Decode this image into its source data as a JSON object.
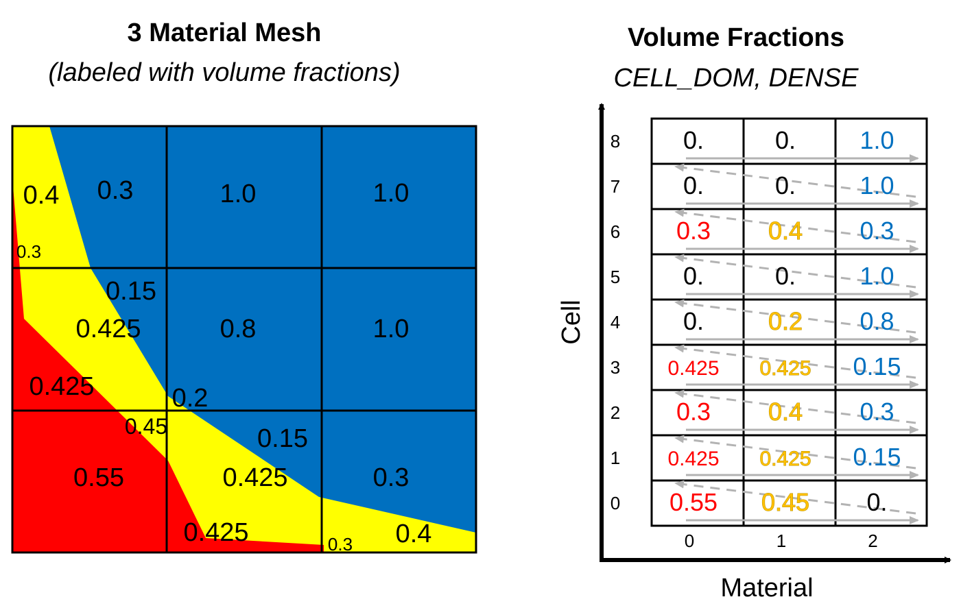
{
  "left_panel": {
    "title": "3 Material Mesh",
    "subtitle": "(labeled with volume fractions)",
    "labels": [
      "0.4",
      "0.3",
      "0.3",
      "1.0",
      "1.0",
      "0.15",
      "0.425",
      "0.8",
      "1.0",
      "0.425",
      "0.2",
      "0.45",
      "0.15",
      "0.55",
      "0.425",
      "0.3",
      "0.425",
      "0.3",
      "0.4"
    ]
  },
  "right_panel": {
    "title": "Volume Fractions",
    "subtitle": "CELL_DOM, DENSE",
    "y_axis_label": "Cell",
    "x_axis_label": "Material",
    "cell_ticks": [
      "0",
      "1",
      "2",
      "3",
      "4",
      "5",
      "6",
      "7",
      "8"
    ],
    "material_ticks": [
      "0",
      "1",
      "2"
    ],
    "rows": [
      [
        "0.55",
        "0.45",
        "0."
      ],
      [
        "0.425",
        "0.425",
        "0.15"
      ],
      [
        "0.3",
        "0.4",
        "0.3"
      ],
      [
        "0.425",
        "0.425",
        "0.15"
      ],
      [
        "0.",
        "0.2",
        "0.8"
      ],
      [
        "0.",
        "0.",
        "1.0"
      ],
      [
        "0.3",
        "0.4",
        "0.3"
      ],
      [
        "0.",
        "0.",
        "1.0"
      ],
      [
        "0.",
        "0.",
        "1.0"
      ]
    ]
  },
  "colors": {
    "material_0": "#ff0000",
    "material_1": "#ffff00",
    "material_2": "#0070c0",
    "material_1_text": "#ffc000",
    "material_2_text": "#0070c0",
    "arrow": "#b3b3b3"
  }
}
